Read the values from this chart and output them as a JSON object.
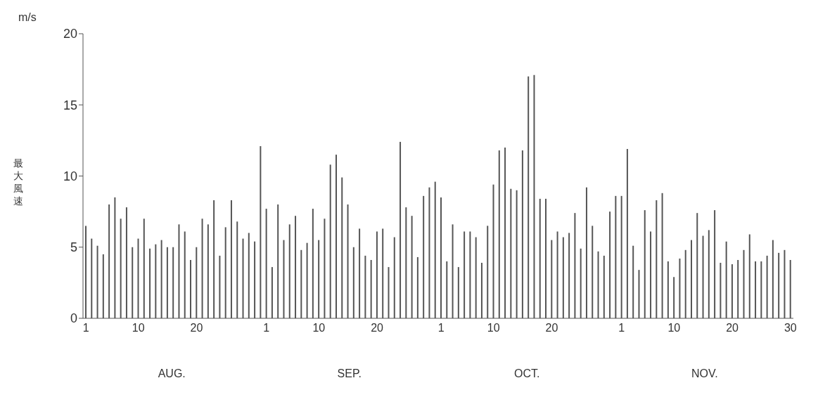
{
  "chart_data": {
    "type": "bar",
    "ylabel": "最大風速",
    "categories": [
      "1",
      null,
      null,
      null,
      null,
      null,
      null,
      null,
      null,
      "10",
      null,
      null,
      null,
      null,
      null,
      null,
      null,
      null,
      null,
      "20",
      null,
      null,
      null,
      null,
      null,
      null,
      null,
      null,
      null,
      null,
      null,
      "1",
      null,
      null,
      null,
      null,
      null,
      null,
      null,
      null,
      "10",
      null,
      null,
      null,
      null,
      null,
      null,
      null,
      null,
      null,
      "20",
      null,
      null,
      null,
      null,
      null,
      null,
      null,
      null,
      null,
      null,
      "1",
      null,
      null,
      null,
      null,
      null,
      null,
      null,
      null,
      "10",
      null,
      null,
      null,
      null,
      null,
      null,
      null,
      null,
      null,
      "20",
      null,
      null,
      null,
      null,
      null,
      null,
      null,
      null,
      null,
      null,
      null,
      "1",
      null,
      null,
      null,
      null,
      null,
      null,
      null,
      null,
      "10",
      null,
      null,
      null,
      null,
      null,
      null,
      null,
      null,
      null,
      "20",
      null,
      null,
      null,
      null,
      null,
      null,
      null,
      null,
      null,
      "30"
    ],
    "values": [
      6.5,
      5.6,
      5.1,
      4.5,
      8.0,
      8.5,
      7.0,
      7.8,
      5.0,
      5.6,
      7.0,
      4.9,
      5.2,
      5.5,
      5.0,
      5.0,
      6.6,
      6.1,
      4.1,
      5.0,
      7.0,
      6.6,
      8.3,
      4.4,
      6.4,
      8.3,
      6.8,
      5.6,
      6.0,
      5.4,
      12.1,
      7.7,
      3.6,
      8.0,
      5.5,
      6.6,
      7.2,
      4.8,
      5.3,
      7.7,
      5.5,
      7.0,
      10.8,
      11.5,
      9.9,
      8.0,
      5.0,
      6.3,
      4.4,
      4.1,
      6.1,
      6.3,
      3.6,
      5.7,
      12.4,
      7.8,
      7.2,
      4.3,
      8.6,
      9.2,
      9.6,
      8.5,
      4.0,
      6.6,
      3.6,
      6.1,
      6.1,
      5.7,
      3.9,
      6.5,
      9.4,
      11.8,
      12.0,
      9.1,
      9.0,
      11.8,
      17.0,
      17.1,
      8.4,
      8.4,
      5.5,
      6.1,
      5.7,
      6.0,
      7.4,
      4.9,
      9.2,
      6.5,
      4.7,
      4.4,
      7.5,
      8.6,
      8.6,
      11.9,
      5.1,
      3.4,
      7.6,
      6.1,
      8.3,
      8.8,
      4.0,
      2.9,
      4.2,
      4.8,
      5.5,
      7.4,
      5.8,
      6.2,
      7.6,
      3.9,
      5.4,
      3.8,
      4.1,
      4.8,
      5.9,
      4.0,
      4.0,
      4.4,
      5.5,
      4.6,
      4.8,
      4.1
    ],
    "color": "#555555",
    "ylim": [
      0,
      20
    ],
    "yticks": [
      0,
      5,
      10,
      15,
      20
    ],
    "grid": false,
    "annotations": [
      "m/s",
      "AUG.",
      "SEP.",
      "OCT.",
      "NOV."
    ]
  }
}
